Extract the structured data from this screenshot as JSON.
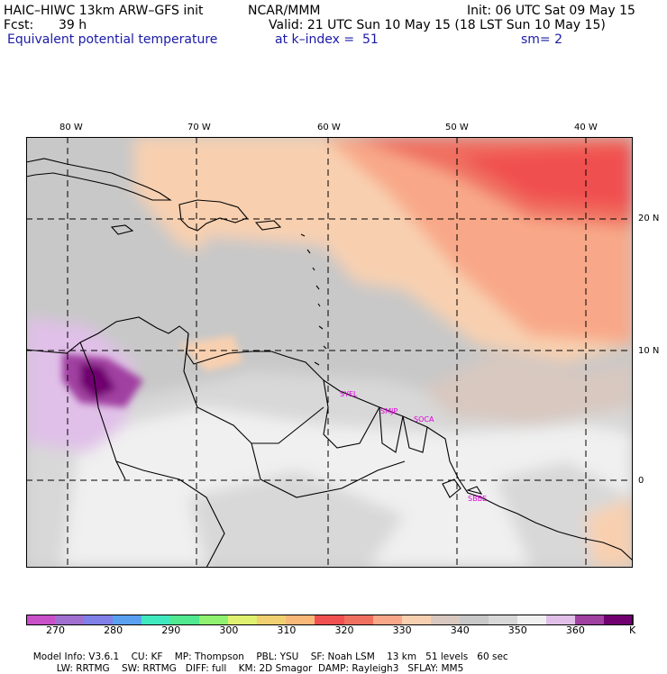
{
  "header": {
    "model": "HAIC–HIWC 13km ARW–GFS init",
    "org": "NCAR/MMM",
    "init": "Init: 06 UTC Sat 09 May 15",
    "fcst_label": "Fcst:",
    "fcst_value": "39 h",
    "valid": "Valid: 21 UTC Sun 10 May 15 (18 LST Sun 10 May 15)",
    "field": "Equivalent potential temperature",
    "level": "at k–index =  51",
    "smooth": "sm= 2"
  },
  "map": {
    "lon_labels": [
      "80 W",
      "70 W",
      "60 W",
      "50 W",
      "40 W"
    ],
    "lat_labels": [
      "20 N",
      "10 N",
      "0"
    ],
    "lon_values": [
      -80,
      -70,
      -60,
      -50,
      -40
    ],
    "lat_values": [
      20,
      10,
      0
    ],
    "stations": [
      "SYEL",
      "SMJP",
      "SOCA",
      "SBBE"
    ]
  },
  "colorbar": {
    "labels": [
      "270",
      "280",
      "290",
      "300",
      "310",
      "320",
      "330",
      "340",
      "350",
      "360"
    ],
    "unit": "K",
    "colors": [
      "#c850c8",
      "#a070d0",
      "#8080e8",
      "#5aa0f0",
      "#40e8c0",
      "#50e890",
      "#90f070",
      "#e0f070",
      "#f0d070",
      "#f8b878",
      "#f05050",
      "#f07060",
      "#f8a888",
      "#f8d0b0",
      "#d8c8c0",
      "#c8c8c8",
      "#d8d8d8",
      "#f0f0f0",
      "#e0c0e8",
      "#a040a0",
      "#700070"
    ]
  },
  "footer": {
    "line1": [
      "Model Info: V3.6.1",
      "CU: KF",
      "MP: Thompson",
      "PBL: YSU",
      "SF: Noah LSM",
      "13 km",
      "51 levels",
      "60 sec"
    ],
    "line2": [
      "LW: RRTMG",
      "SW: RRTMG",
      "DIFF: full",
      "KM: 2D Smagor",
      "DAMP: Rayleigh3",
      "SFLAY: MM5"
    ]
  }
}
